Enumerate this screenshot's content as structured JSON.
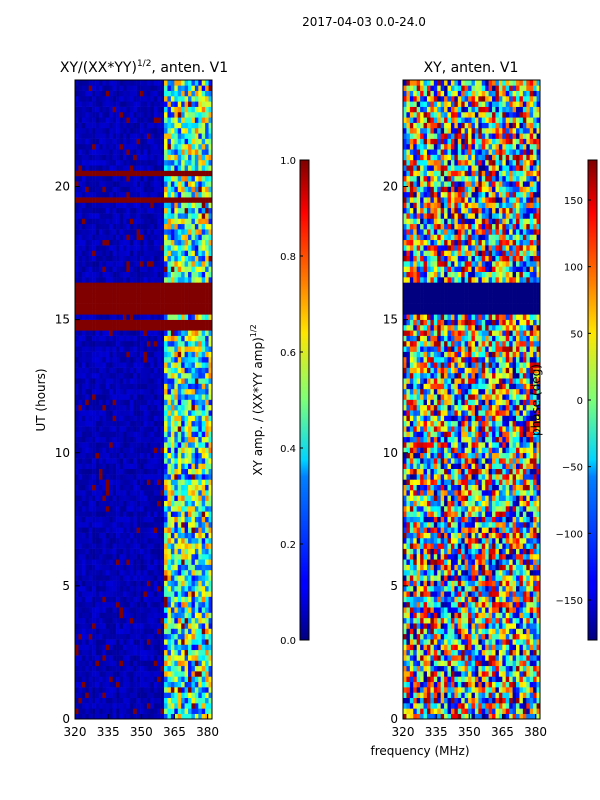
{
  "figure_title": "2017-04-03 0.0-24.0",
  "chart_data": [
    {
      "type": "heatmap",
      "title_main": "XY/(XX*YY)",
      "title_sup": "1/2",
      "title_rest": ", anten. V1",
      "xlabel": "",
      "ylabel": "UT (hours)",
      "xlim": [
        320,
        382
      ],
      "ylim": [
        0,
        24
      ],
      "x_ticks": [
        320,
        335,
        350,
        365,
        380
      ],
      "x_tick_labels": [
        "320",
        "335",
        "350",
        "365",
        "380"
      ],
      "y_ticks": [
        0,
        5,
        10,
        15,
        20
      ],
      "y_tick_labels": [
        "0",
        "5",
        "10",
        "15",
        "20"
      ],
      "bands": [
        {
          "name": "low-amplitude band",
          "x_range": [
            320,
            360
          ],
          "value": 0.05
        },
        {
          "name": "high-amplitude band",
          "x_range": [
            360,
            382
          ],
          "value": 0.4
        }
      ],
      "saturated_ut_ranges": [
        [
          14.6,
          15.0
        ],
        [
          15.3,
          16.4
        ],
        [
          19.3,
          19.5
        ],
        [
          20.4,
          20.6
        ]
      ],
      "colorbar": {
        "label_main": "XY amp. / (XX*YY amp)",
        "label_sup": "1/2",
        "range": [
          0.0,
          1.0
        ],
        "ticks": [
          0.0,
          0.2,
          0.4,
          0.6,
          0.8,
          1.0
        ],
        "tick_labels": [
          "0.0",
          "0.2",
          "0.4",
          "0.6",
          "0.8",
          "1.0"
        ]
      }
    },
    {
      "type": "heatmap",
      "title": "XY, anten. V1",
      "xlabel": "frequency (MHz)",
      "ylabel": "",
      "xlim": [
        320,
        382
      ],
      "ylim": [
        0,
        24
      ],
      "x_ticks": [
        320,
        335,
        350,
        365,
        380
      ],
      "x_tick_labels": [
        "320",
        "335",
        "350",
        "365",
        "380"
      ],
      "y_ticks": [
        0,
        5,
        10,
        15,
        20
      ],
      "y_tick_labels": [
        "0",
        "5",
        "10",
        "15",
        "20"
      ],
      "low_phase_ut_ranges": [
        [
          15.3,
          16.4
        ]
      ],
      "colorbar": {
        "label": "phase (deg)",
        "range": [
          -180,
          180
        ],
        "ticks": [
          -150,
          -100,
          -50,
          0,
          50,
          100,
          150
        ],
        "tick_labels": [
          "−150",
          "−100",
          "−50",
          "0",
          "50",
          "100",
          "150"
        ]
      }
    }
  ]
}
